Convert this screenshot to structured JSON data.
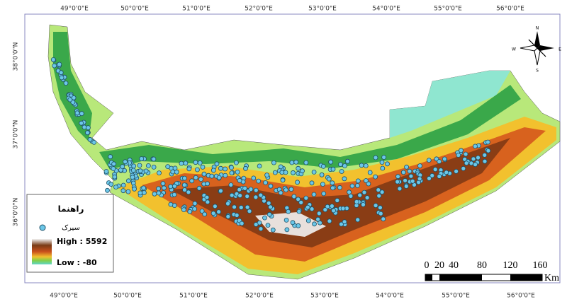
{
  "graticule": {
    "top": [
      "49°0'0\"E",
      "50°0'0\"E",
      "51°0'0\"E",
      "52°0'0\"E",
      "53°0'0\"E",
      "54°0'0\"E",
      "55°0'0\"E",
      "56°0'0\"E"
    ],
    "bottom": [
      "49°0'0\"E",
      "50°0'0\"E",
      "51°0'0\"E",
      "52°0'0\"E",
      "53°0'0\"E",
      "54°0'0\"E",
      "55°0'0\"E",
      "56°0'0\"E"
    ],
    "left": [
      "38°0'0\"N",
      "37°0'0\"N",
      "36°0'0\"N"
    ]
  },
  "legend": {
    "title": "راهنما",
    "items": [
      {
        "label": "سیرک"
      }
    ],
    "high": "High : 5592",
    "low": "Low : -80"
  },
  "scale_bar": {
    "ticks": [
      "0",
      "20",
      "40",
      "80",
      "120",
      "160"
    ],
    "unit": "Km"
  },
  "compass": {
    "n": "N",
    "e": "E",
    "s": "S",
    "w": "W"
  }
}
